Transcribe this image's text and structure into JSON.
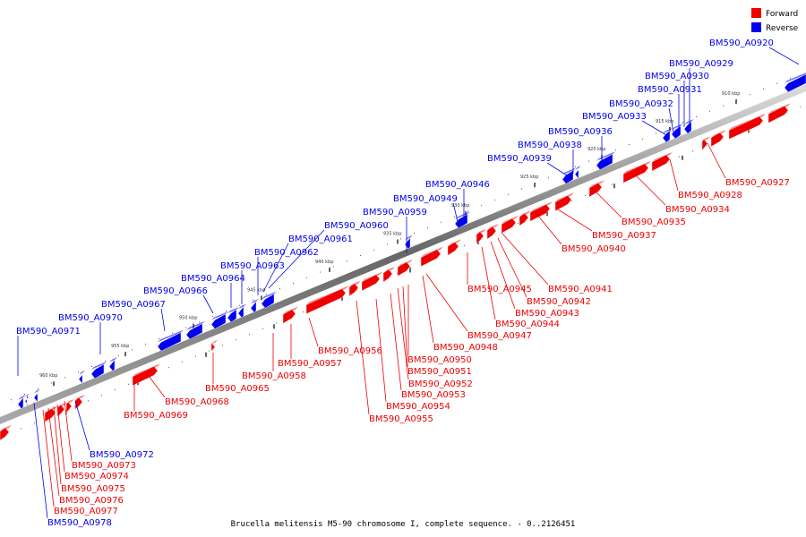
{
  "caption": "Brucella melitensis M5-90 chromosome I, complete sequence. - 0..2126451",
  "legend": {
    "forward": {
      "label": "Forward",
      "color": "#ee0000"
    },
    "reverse": {
      "label": "Reverse",
      "color": "#0000ee"
    }
  },
  "ticks": [
    "910 kbp",
    "915 kbp",
    "920 kbp",
    "925 kbp",
    "930 kbp",
    "935 kbp",
    "940 kbp",
    "945 kbp",
    "950 kbp",
    "955 kbp",
    "960 kbp"
  ],
  "reverse_genes": [
    "BM590_A0920",
    "BM590_A0929",
    "BM590_A0930",
    "BM590_A0931",
    "BM590_A0932",
    "BM590_A0933",
    "BM590_A0936",
    "BM590_A0938",
    "BM590_A0939",
    "BM590_A0946",
    "BM590_A0949",
    "BM590_A0959",
    "BM590_A0960",
    "BM590_A0961",
    "BM590_A0962",
    "BM590_A0963",
    "BM590_A0964",
    "BM590_A0966",
    "BM590_A0967",
    "BM590_A0970",
    "BM590_A0971",
    "BM590_A0972",
    "BM590_A0978"
  ],
  "forward_genes": [
    "BM590_A0927",
    "BM590_A0928",
    "BM590_A0934",
    "BM590_A0935",
    "BM590_A0937",
    "BM590_A0940",
    "BM590_A0941",
    "BM590_A0942",
    "BM590_A0943",
    "BM590_A0944",
    "BM590_A0945",
    "BM590_A0947",
    "BM590_A0948",
    "BM590_A0950",
    "BM590_A0951",
    "BM590_A0952",
    "BM590_A0953",
    "BM590_A0954",
    "BM590_A0955",
    "BM590_A0956",
    "BM590_A0957",
    "BM590_A0958",
    "BM590_A0965",
    "BM590_A0968",
    "BM590_A0969",
    "BM590_A0973",
    "BM590_A0974",
    "BM590_A0975",
    "BM590_A0976",
    "BM590_A0977"
  ]
}
